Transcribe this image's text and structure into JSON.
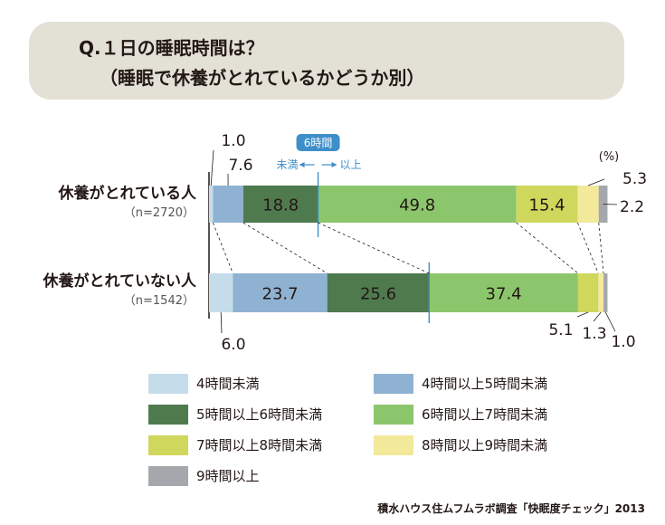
{
  "title": {
    "line1": "Q.１日の睡眠時間は？",
    "line2": "（睡眠で休養がとれているかどうか別）"
  },
  "chart_data": {
    "type": "bar",
    "stacked": true,
    "orientation": "horizontal",
    "unit": "(%)",
    "categories": [
      {
        "label": "休養がとれている人",
        "n": "（n=2720）"
      },
      {
        "label": "休養がとれていない人",
        "n": "（n=1542）"
      }
    ],
    "series": [
      {
        "name": "4時間未満",
        "color": "#c5dcea",
        "values": [
          1.0,
          6.0
        ]
      },
      {
        "name": "4時間以上5時間未満",
        "color": "#8fb2d2",
        "values": [
          7.6,
          23.7
        ]
      },
      {
        "name": "5時間以上6時間未満",
        "color": "#4f7a4e",
        "values": [
          18.8,
          25.6
        ]
      },
      {
        "name": "6時間以上7時間未満",
        "color": "#8cc66c",
        "values": [
          49.8,
          37.4
        ]
      },
      {
        "name": "7時間以上8時間未満",
        "color": "#cfd75c",
        "values": [
          15.4,
          5.1
        ]
      },
      {
        "name": "8時間以上9時間未満",
        "color": "#f2e99a",
        "values": [
          5.3,
          1.3
        ]
      },
      {
        "name": "9時間以上",
        "color": "#a4a8ac",
        "values": [
          2.2,
          1.0
        ]
      }
    ],
    "annotation": {
      "label": "6時間",
      "left": "未満",
      "right": "以上"
    },
    "legend_position": "bottom",
    "xlim": [
      0,
      100
    ]
  },
  "source": "積水ハウス住ムフムラボ調査「快眠度チェック」2013"
}
